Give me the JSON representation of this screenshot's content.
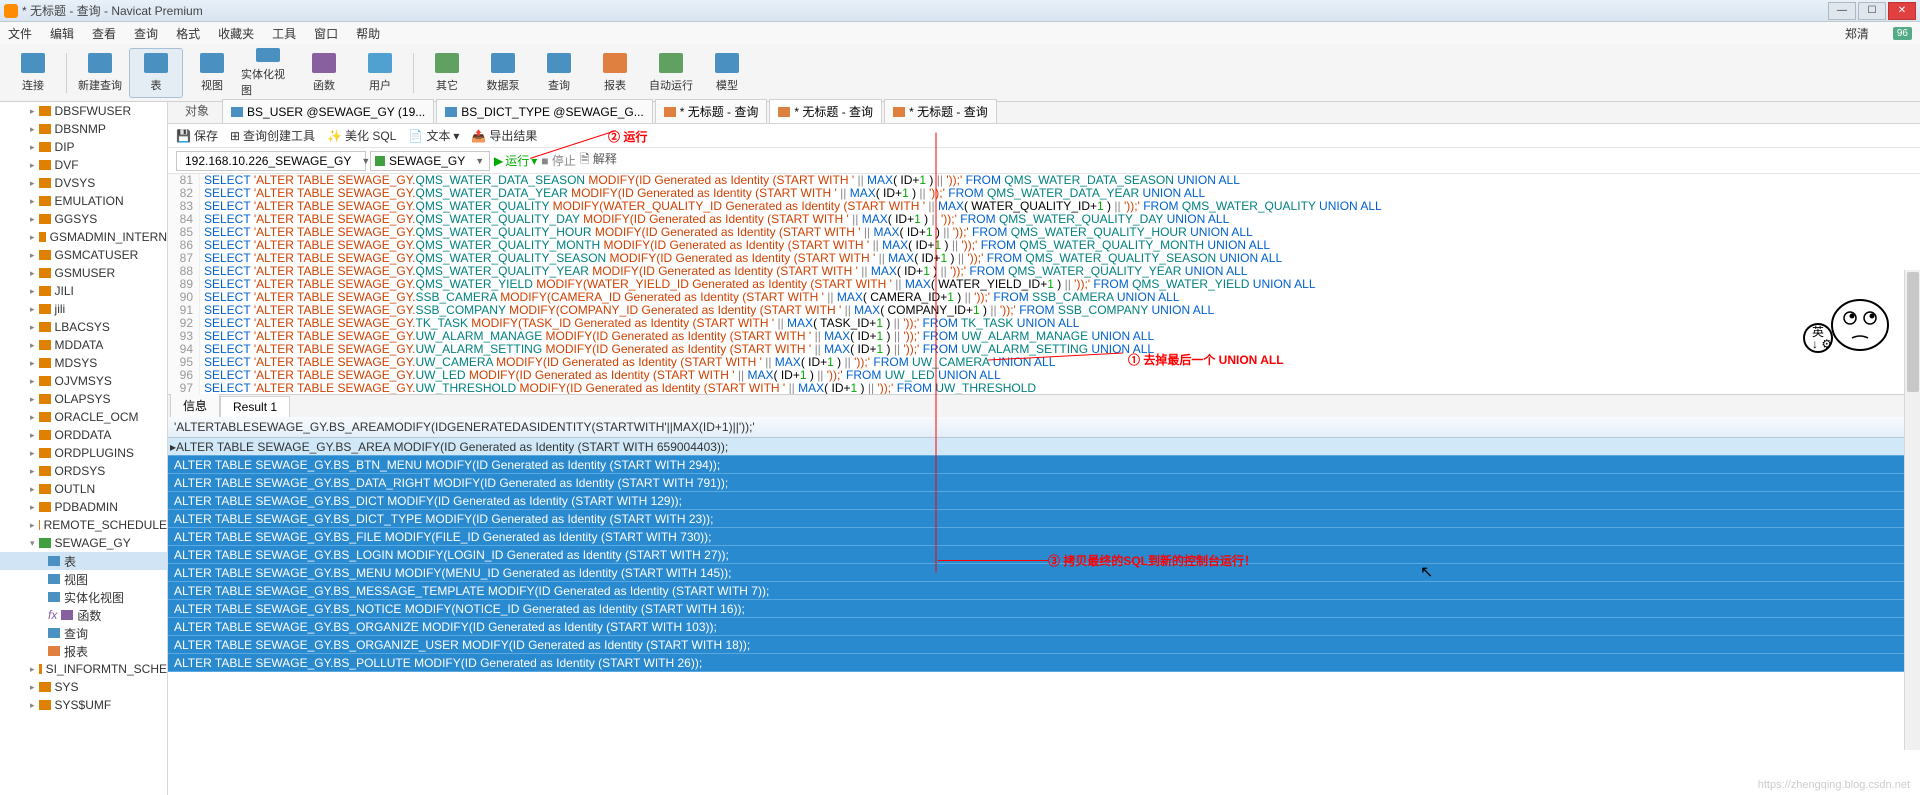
{
  "title": "* 无标题 - 查询 - Navicat Premium",
  "menus": [
    "文件",
    "编辑",
    "查看",
    "查询",
    "格式",
    "收藏夹",
    "工具",
    "窗口",
    "帮助"
  ],
  "user": "郑清",
  "badge": "96",
  "toolbar": [
    {
      "label": "连接",
      "icon": "#4a90c0"
    },
    {
      "label": "新建查询",
      "icon": "#4a90c0"
    },
    {
      "label": "表",
      "icon": "#4a90c0",
      "active": true
    },
    {
      "label": "视图",
      "icon": "#4a90c0"
    },
    {
      "label": "实体化视图",
      "icon": "#4a90c0"
    },
    {
      "label": "函数",
      "icon": "#8860a0"
    },
    {
      "label": "用户",
      "icon": "#50a0d0"
    },
    {
      "label": "其它",
      "icon": "#60a060"
    },
    {
      "label": "数据泵",
      "icon": "#4a90c0"
    },
    {
      "label": "查询",
      "icon": "#4a90c0"
    },
    {
      "label": "报表",
      "icon": "#e08040"
    },
    {
      "label": "自动运行",
      "icon": "#60a060"
    },
    {
      "label": "模型",
      "icon": "#4a90c0"
    }
  ],
  "tree": [
    {
      "label": "DBSFWUSER",
      "lvl": 2,
      "ico": "#e08000"
    },
    {
      "label": "DBSNMP",
      "lvl": 2,
      "ico": "#e08000"
    },
    {
      "label": "DIP",
      "lvl": 2,
      "ico": "#e08000"
    },
    {
      "label": "DVF",
      "lvl": 2,
      "ico": "#e08000"
    },
    {
      "label": "DVSYS",
      "lvl": 2,
      "ico": "#e08000"
    },
    {
      "label": "EMULATION",
      "lvl": 2,
      "ico": "#e08000"
    },
    {
      "label": "GGSYS",
      "lvl": 2,
      "ico": "#e08000"
    },
    {
      "label": "GSMADMIN_INTERN",
      "lvl": 2,
      "ico": "#e08000"
    },
    {
      "label": "GSMCATUSER",
      "lvl": 2,
      "ico": "#e08000"
    },
    {
      "label": "GSMUSER",
      "lvl": 2,
      "ico": "#e08000"
    },
    {
      "label": "JILI",
      "lvl": 2,
      "ico": "#e08000"
    },
    {
      "label": "jili",
      "lvl": 2,
      "ico": "#e08000"
    },
    {
      "label": "LBACSYS",
      "lvl": 2,
      "ico": "#e08000"
    },
    {
      "label": "MDDATA",
      "lvl": 2,
      "ico": "#e08000"
    },
    {
      "label": "MDSYS",
      "lvl": 2,
      "ico": "#e08000"
    },
    {
      "label": "OJVMSYS",
      "lvl": 2,
      "ico": "#e08000"
    },
    {
      "label": "OLAPSYS",
      "lvl": 2,
      "ico": "#e08000"
    },
    {
      "label": "ORACLE_OCM",
      "lvl": 2,
      "ico": "#e08000"
    },
    {
      "label": "ORDDATA",
      "lvl": 2,
      "ico": "#e08000"
    },
    {
      "label": "ORDPLUGINS",
      "lvl": 2,
      "ico": "#e08000"
    },
    {
      "label": "ORDSYS",
      "lvl": 2,
      "ico": "#e08000"
    },
    {
      "label": "OUTLN",
      "lvl": 2,
      "ico": "#e08000"
    },
    {
      "label": "PDBADMIN",
      "lvl": 2,
      "ico": "#e08000"
    },
    {
      "label": "REMOTE_SCHEDULE",
      "lvl": 2,
      "ico": "#e08000"
    },
    {
      "label": "SEWAGE_GY",
      "lvl": 2,
      "ico": "#40a040",
      "exp": true
    },
    {
      "label": "表",
      "lvl": 3,
      "ico": "#4a90c0",
      "sel": true
    },
    {
      "label": "视图",
      "lvl": 3,
      "ico": "#4a90c0"
    },
    {
      "label": "实体化视图",
      "lvl": 3,
      "ico": "#4a90c0"
    },
    {
      "label": "函数",
      "lvl": 3,
      "ico": "#8860a0",
      "pre": "fx"
    },
    {
      "label": "查询",
      "lvl": 3,
      "ico": "#4a90c0"
    },
    {
      "label": "报表",
      "lvl": 3,
      "ico": "#e08040"
    },
    {
      "label": "SI_INFORMTN_SCHE",
      "lvl": 2,
      "ico": "#e08000"
    },
    {
      "label": "SYS",
      "lvl": 2,
      "ico": "#e08000"
    },
    {
      "label": "SYS$UMF",
      "lvl": 2,
      "ico": "#e08000"
    }
  ],
  "tabs": {
    "obj": "对象",
    "docs": [
      {
        "label": "BS_USER @SEWAGE_GY (19...",
        "ico": "#4a90c0"
      },
      {
        "label": "BS_DICT_TYPE @SEWAGE_G...",
        "ico": "#4a90c0"
      },
      {
        "label": "* 无标题 - 查询",
        "ico": "#e08040",
        "mod": true
      },
      {
        "label": "* 无标题 - 查询",
        "ico": "#e08040",
        "active": true,
        "mod": true
      },
      {
        "label": "* 无标题 - 查询",
        "ico": "#e08040",
        "mod": true
      }
    ]
  },
  "actions": [
    "保存",
    "查询创建工具",
    "美化 SQL",
    "文本",
    "导出结果"
  ],
  "conn": {
    "server": "192.168.10.226_SEWAGE_GY",
    "schema": "SEWAGE_GY",
    "run": "运行",
    "stop": "停止",
    "explain": "解释"
  },
  "code_lines": [
    {
      "n": 81,
      "s": "SELECT 'ALTER TABLE SEWAGE_GY.QMS_WATER_DATA_SEASON MODIFY(ID Generated as Identity (START WITH ' || MAX( ID+1 ) || '));' FROM QMS_WATER_DATA_SEASON UNION ALL"
    },
    {
      "n": 82,
      "s": "SELECT 'ALTER TABLE SEWAGE_GY.QMS_WATER_DATA_YEAR MODIFY(ID Generated as Identity (START WITH ' || MAX( ID+1 ) || '));' FROM QMS_WATER_DATA_YEAR UNION ALL"
    },
    {
      "n": 83,
      "s": "SELECT 'ALTER TABLE SEWAGE_GY.QMS_WATER_QUALITY MODIFY(WATER_QUALITY_ID Generated as Identity (START WITH ' || MAX( WATER_QUALITY_ID+1 ) || '));' FROM QMS_WATER_QUALITY UNION ALL"
    },
    {
      "n": 84,
      "s": "SELECT 'ALTER TABLE SEWAGE_GY.QMS_WATER_QUALITY_DAY MODIFY(ID Generated as Identity (START WITH ' || MAX( ID+1 ) || '));' FROM QMS_WATER_QUALITY_DAY UNION ALL"
    },
    {
      "n": 85,
      "s": "SELECT 'ALTER TABLE SEWAGE_GY.QMS_WATER_QUALITY_HOUR MODIFY(ID Generated as Identity (START WITH ' || MAX( ID+1 ) || '));' FROM QMS_WATER_QUALITY_HOUR UNION ALL"
    },
    {
      "n": 86,
      "s": "SELECT 'ALTER TABLE SEWAGE_GY.QMS_WATER_QUALITY_MONTH MODIFY(ID Generated as Identity (START WITH ' || MAX( ID+1 ) || '));' FROM QMS_WATER_QUALITY_MONTH UNION ALL"
    },
    {
      "n": 87,
      "s": "SELECT 'ALTER TABLE SEWAGE_GY.QMS_WATER_QUALITY_SEASON MODIFY(ID Generated as Identity (START WITH ' || MAX( ID+1 ) || '));' FROM QMS_WATER_QUALITY_SEASON UNION ALL"
    },
    {
      "n": 88,
      "s": "SELECT 'ALTER TABLE SEWAGE_GY.QMS_WATER_QUALITY_YEAR MODIFY(ID Generated as Identity (START WITH ' || MAX( ID+1 ) || '));' FROM QMS_WATER_QUALITY_YEAR UNION ALL"
    },
    {
      "n": 89,
      "s": "SELECT 'ALTER TABLE SEWAGE_GY.QMS_WATER_YIELD MODIFY(WATER_YIELD_ID Generated as Identity (START WITH ' || MAX( WATER_YIELD_ID+1 ) || '));' FROM QMS_WATER_YIELD UNION ALL"
    },
    {
      "n": 90,
      "s": "SELECT 'ALTER TABLE SEWAGE_GY.SSB_CAMERA MODIFY(CAMERA_ID Generated as Identity (START WITH ' || MAX( CAMERA_ID+1 ) || '));' FROM SSB_CAMERA UNION ALL"
    },
    {
      "n": 91,
      "s": "SELECT 'ALTER TABLE SEWAGE_GY.SSB_COMPANY MODIFY(COMPANY_ID Generated as Identity (START WITH ' || MAX( COMPANY_ID+1 ) || '));' FROM SSB_COMPANY UNION ALL"
    },
    {
      "n": 92,
      "s": "SELECT 'ALTER TABLE SEWAGE_GY.TK_TASK MODIFY(TASK_ID Generated as Identity (START WITH ' || MAX( TASK_ID+1 ) || '));' FROM TK_TASK UNION ALL"
    },
    {
      "n": 93,
      "s": "SELECT 'ALTER TABLE SEWAGE_GY.UW_ALARM_MANAGE MODIFY(ID Generated as Identity (START WITH ' || MAX( ID+1 ) || '));' FROM UW_ALARM_MANAGE UNION ALL"
    },
    {
      "n": 94,
      "s": "SELECT 'ALTER TABLE SEWAGE_GY.UW_ALARM_SETTING MODIFY(ID Generated as Identity (START WITH ' || MAX( ID+1 ) || '));' FROM UW_ALARM_SETTING UNION ALL"
    },
    {
      "n": 95,
      "s": "SELECT 'ALTER TABLE SEWAGE_GY.UW_CAMERA MODIFY(ID Generated as Identity (START WITH ' || MAX( ID+1 ) || '));' FROM UW_CAMERA UNION ALL"
    },
    {
      "n": 96,
      "s": "SELECT 'ALTER TABLE SEWAGE_GY.UW_LED MODIFY(ID Generated as Identity (START WITH ' || MAX( ID+1 ) || '));' FROM UW_LED UNION ALL"
    },
    {
      "n": 97,
      "s": "SELECT 'ALTER TABLE SEWAGE_GY.UW_THRESHOLD MODIFY(ID Generated as Identity (START WITH ' || MAX( ID+1 ) || '));' FROM UW_THRESHOLD"
    }
  ],
  "result_tabs": [
    "信息",
    "Result 1"
  ],
  "grid_header": "'ALTERTABLESEWAGE_GY.BS_AREAMODIFY(IDGENERATEDASIDENTITY(STARTWITH'||MAX(ID+1)||'));'",
  "grid_rows": [
    "ALTER TABLE SEWAGE_GY.BS_AREA MODIFY(ID Generated as Identity (START WITH 659004403));",
    "ALTER TABLE SEWAGE_GY.BS_BTN_MENU MODIFY(ID Generated as Identity (START WITH 294));",
    "ALTER TABLE SEWAGE_GY.BS_DATA_RIGHT MODIFY(ID Generated as Identity (START WITH 791));",
    "ALTER TABLE SEWAGE_GY.BS_DICT MODIFY(ID Generated as Identity (START WITH 129));",
    "ALTER TABLE SEWAGE_GY.BS_DICT_TYPE MODIFY(ID Generated as Identity (START WITH 23));",
    "ALTER TABLE SEWAGE_GY.BS_FILE MODIFY(FILE_ID Generated as Identity (START WITH 730));",
    "ALTER TABLE SEWAGE_GY.BS_LOGIN MODIFY(LOGIN_ID Generated as Identity (START WITH 27));",
    "ALTER TABLE SEWAGE_GY.BS_MENU MODIFY(MENU_ID Generated as Identity (START WITH 145));",
    "ALTER TABLE SEWAGE_GY.BS_MESSAGE_TEMPLATE MODIFY(ID Generated as Identity (START WITH 7));",
    "ALTER TABLE SEWAGE_GY.BS_NOTICE MODIFY(NOTICE_ID Generated as Identity (START WITH 16));",
    "ALTER TABLE SEWAGE_GY.BS_ORGANIZE MODIFY(ID Generated as Identity (START WITH 103));",
    "ALTER TABLE SEWAGE_GY.BS_ORGANIZE_USER MODIFY(ID Generated as Identity (START WITH 18));",
    "ALTER TABLE SEWAGE_GY.BS_POLLUTE MODIFY(ID Generated as Identity (START WITH 26));"
  ],
  "annotations": {
    "a1": "① 去掉最后一个 UNION ALL",
    "a2": "② 运行",
    "a3": "③ 拷贝最终的SQL到新的控制台运行！"
  },
  "watermark": "https://zhengqing.blog.csdn.net"
}
